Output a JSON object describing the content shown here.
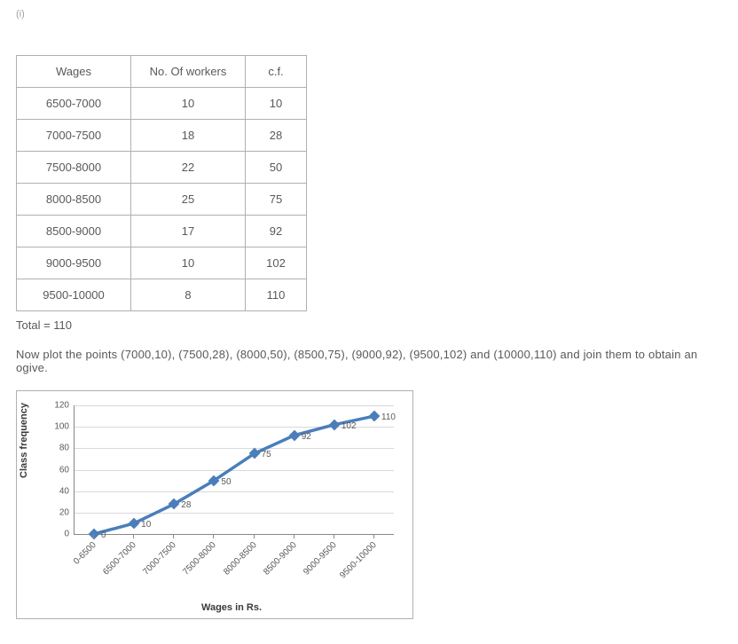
{
  "item_number": "(i)",
  "table": {
    "headers": [
      "Wages",
      "No. Of workers",
      "c.f."
    ],
    "rows": [
      [
        "6500-7000",
        "10",
        "10"
      ],
      [
        "7000-7500",
        "18",
        "28"
      ],
      [
        "7500-8000",
        "22",
        "50"
      ],
      [
        "8000-8500",
        "25",
        "75"
      ],
      [
        "8500-9000",
        "17",
        "92"
      ],
      [
        "9000-9500",
        "10",
        "102"
      ],
      [
        "9500-10000",
        "8",
        "110"
      ]
    ]
  },
  "total_text": "Total = 110",
  "caption": "Now plot the points (7000,10), (7500,28), (8000,50), (8500,75), (9000,92), (9500,102) and (10000,110) and join them to obtain an ogive.",
  "chart": {
    "type": "line",
    "ylabel": "Class frequency",
    "xlabel": "Wages in Rs.",
    "ylim": [
      0,
      120
    ],
    "ytick_step": 20,
    "categories": [
      "0-6500",
      "6500-7000",
      "7000-7500",
      "7500-8000",
      "8000-8500",
      "8500-9000",
      "9000-9500",
      "9500-10000"
    ],
    "values": [
      0,
      10,
      28,
      50,
      75,
      92,
      102,
      110
    ],
    "point_labels": [
      "0",
      "10",
      "28",
      "50",
      "75",
      "92",
      "102",
      "110"
    ],
    "line_color": "#4a7ebb",
    "line_width": 3.5,
    "marker_color": "#4a7ebb",
    "grid_color": "#d9d9d9",
    "axis_color": "#888888",
    "background_color": "#ffffff",
    "label_fontsize": 11,
    "tick_fontsize": 10
  }
}
